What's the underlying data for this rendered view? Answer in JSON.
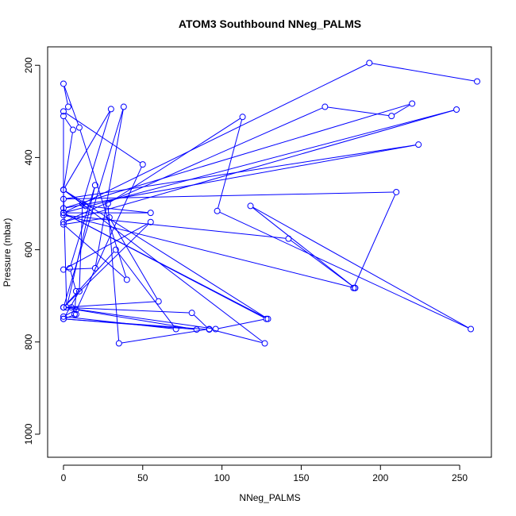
{
  "chart_data": {
    "type": "line",
    "title": "ATOM3 Southbound NNeg_PALMS",
    "xlabel": "NNeg_PALMS",
    "ylabel": "Pressure (mbar)",
    "xlim": [
      -10,
      270
    ],
    "ylim": [
      1050,
      160
    ],
    "y_reversed": true,
    "x_ticks": [
      0,
      50,
      100,
      150,
      200,
      250
    ],
    "y_ticks": [
      200,
      400,
      600,
      800,
      1000
    ],
    "grid": false,
    "legend": "none",
    "line_color": "#0000ff",
    "marker": "open-circle",
    "series": [
      {
        "x": [
          5,
          8,
          0,
          10,
          12,
          30,
          0,
          6,
          0,
          0,
          55,
          14,
          0,
          2,
          20,
          4,
          8,
          7,
          50,
          0,
          3,
          0,
          10,
          40,
          0,
          29,
          60,
          0,
          55,
          0,
          20,
          38,
          0,
          33,
          71,
          0,
          8,
          84,
          0,
          92,
          81,
          0,
          96,
          128,
          0,
          129,
          0,
          127,
          92,
          35,
          28,
          113,
          97,
          257,
          118,
          184,
          0,
          142,
          184,
          183,
          210,
          0,
          224,
          0,
          220,
          207,
          165,
          0,
          248,
          0,
          193,
          261
        ],
        "y": [
          725,
          740,
          750,
          690,
          500,
          295,
          470,
          340,
          310,
          520,
          520,
          505,
          470,
          725,
          460,
          640,
          690,
          740,
          415,
          300,
          290,
          240,
          335,
          665,
          545,
          530,
          712,
          725,
          540,
          643,
          640,
          290,
          725,
          600,
          772,
          745,
          730,
          773,
          750,
          773,
          737,
          725,
          772,
          750,
          520,
          750,
          470,
          803,
          772,
          803,
          500,
          312,
          516,
          772,
          505,
          683,
          525,
          576,
          683,
          683,
          475,
          490,
          372,
          510,
          283,
          310,
          290,
          540,
          296,
          520,
          195,
          235
        ]
      }
    ]
  }
}
